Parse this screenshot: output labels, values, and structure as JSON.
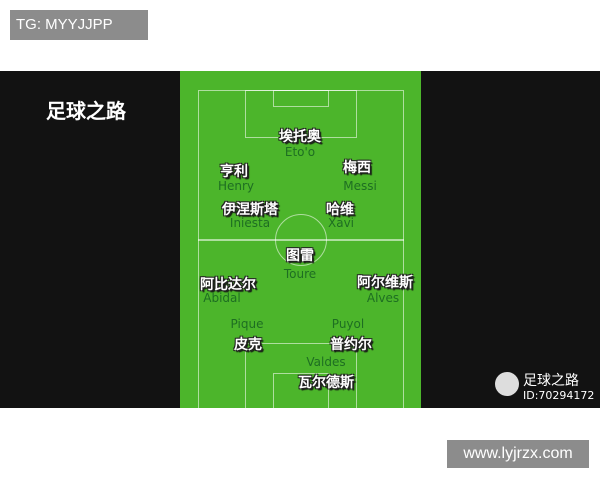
{
  "tg_label": "TG: MYYJJPP",
  "photo": {
    "title": "足球之路",
    "players": [
      {
        "cn": "埃托奥",
        "en": "Eto'o"
      },
      {
        "cn": "亨利",
        "en": "Henry"
      },
      {
        "cn": "梅西",
        "en": "Messi"
      },
      {
        "cn": "伊涅斯塔",
        "en": "Iniesta"
      },
      {
        "cn": "哈维",
        "en": "Xavi"
      },
      {
        "cn": "图雷",
        "en": "Toure"
      },
      {
        "cn": "阿比达尔",
        "en": "Abidal"
      },
      {
        "cn": "阿尔维斯",
        "en": "Alves"
      },
      {
        "cn": "皮克",
        "en": "Pique"
      },
      {
        "cn": "普约尔",
        "en": "Puyol"
      },
      {
        "cn": "瓦尔德斯",
        "en": "Valdes"
      }
    ],
    "watermark": {
      "name": "足球之路",
      "id": "ID:70294172"
    }
  },
  "site_url": "www.lyjrzx.com"
}
